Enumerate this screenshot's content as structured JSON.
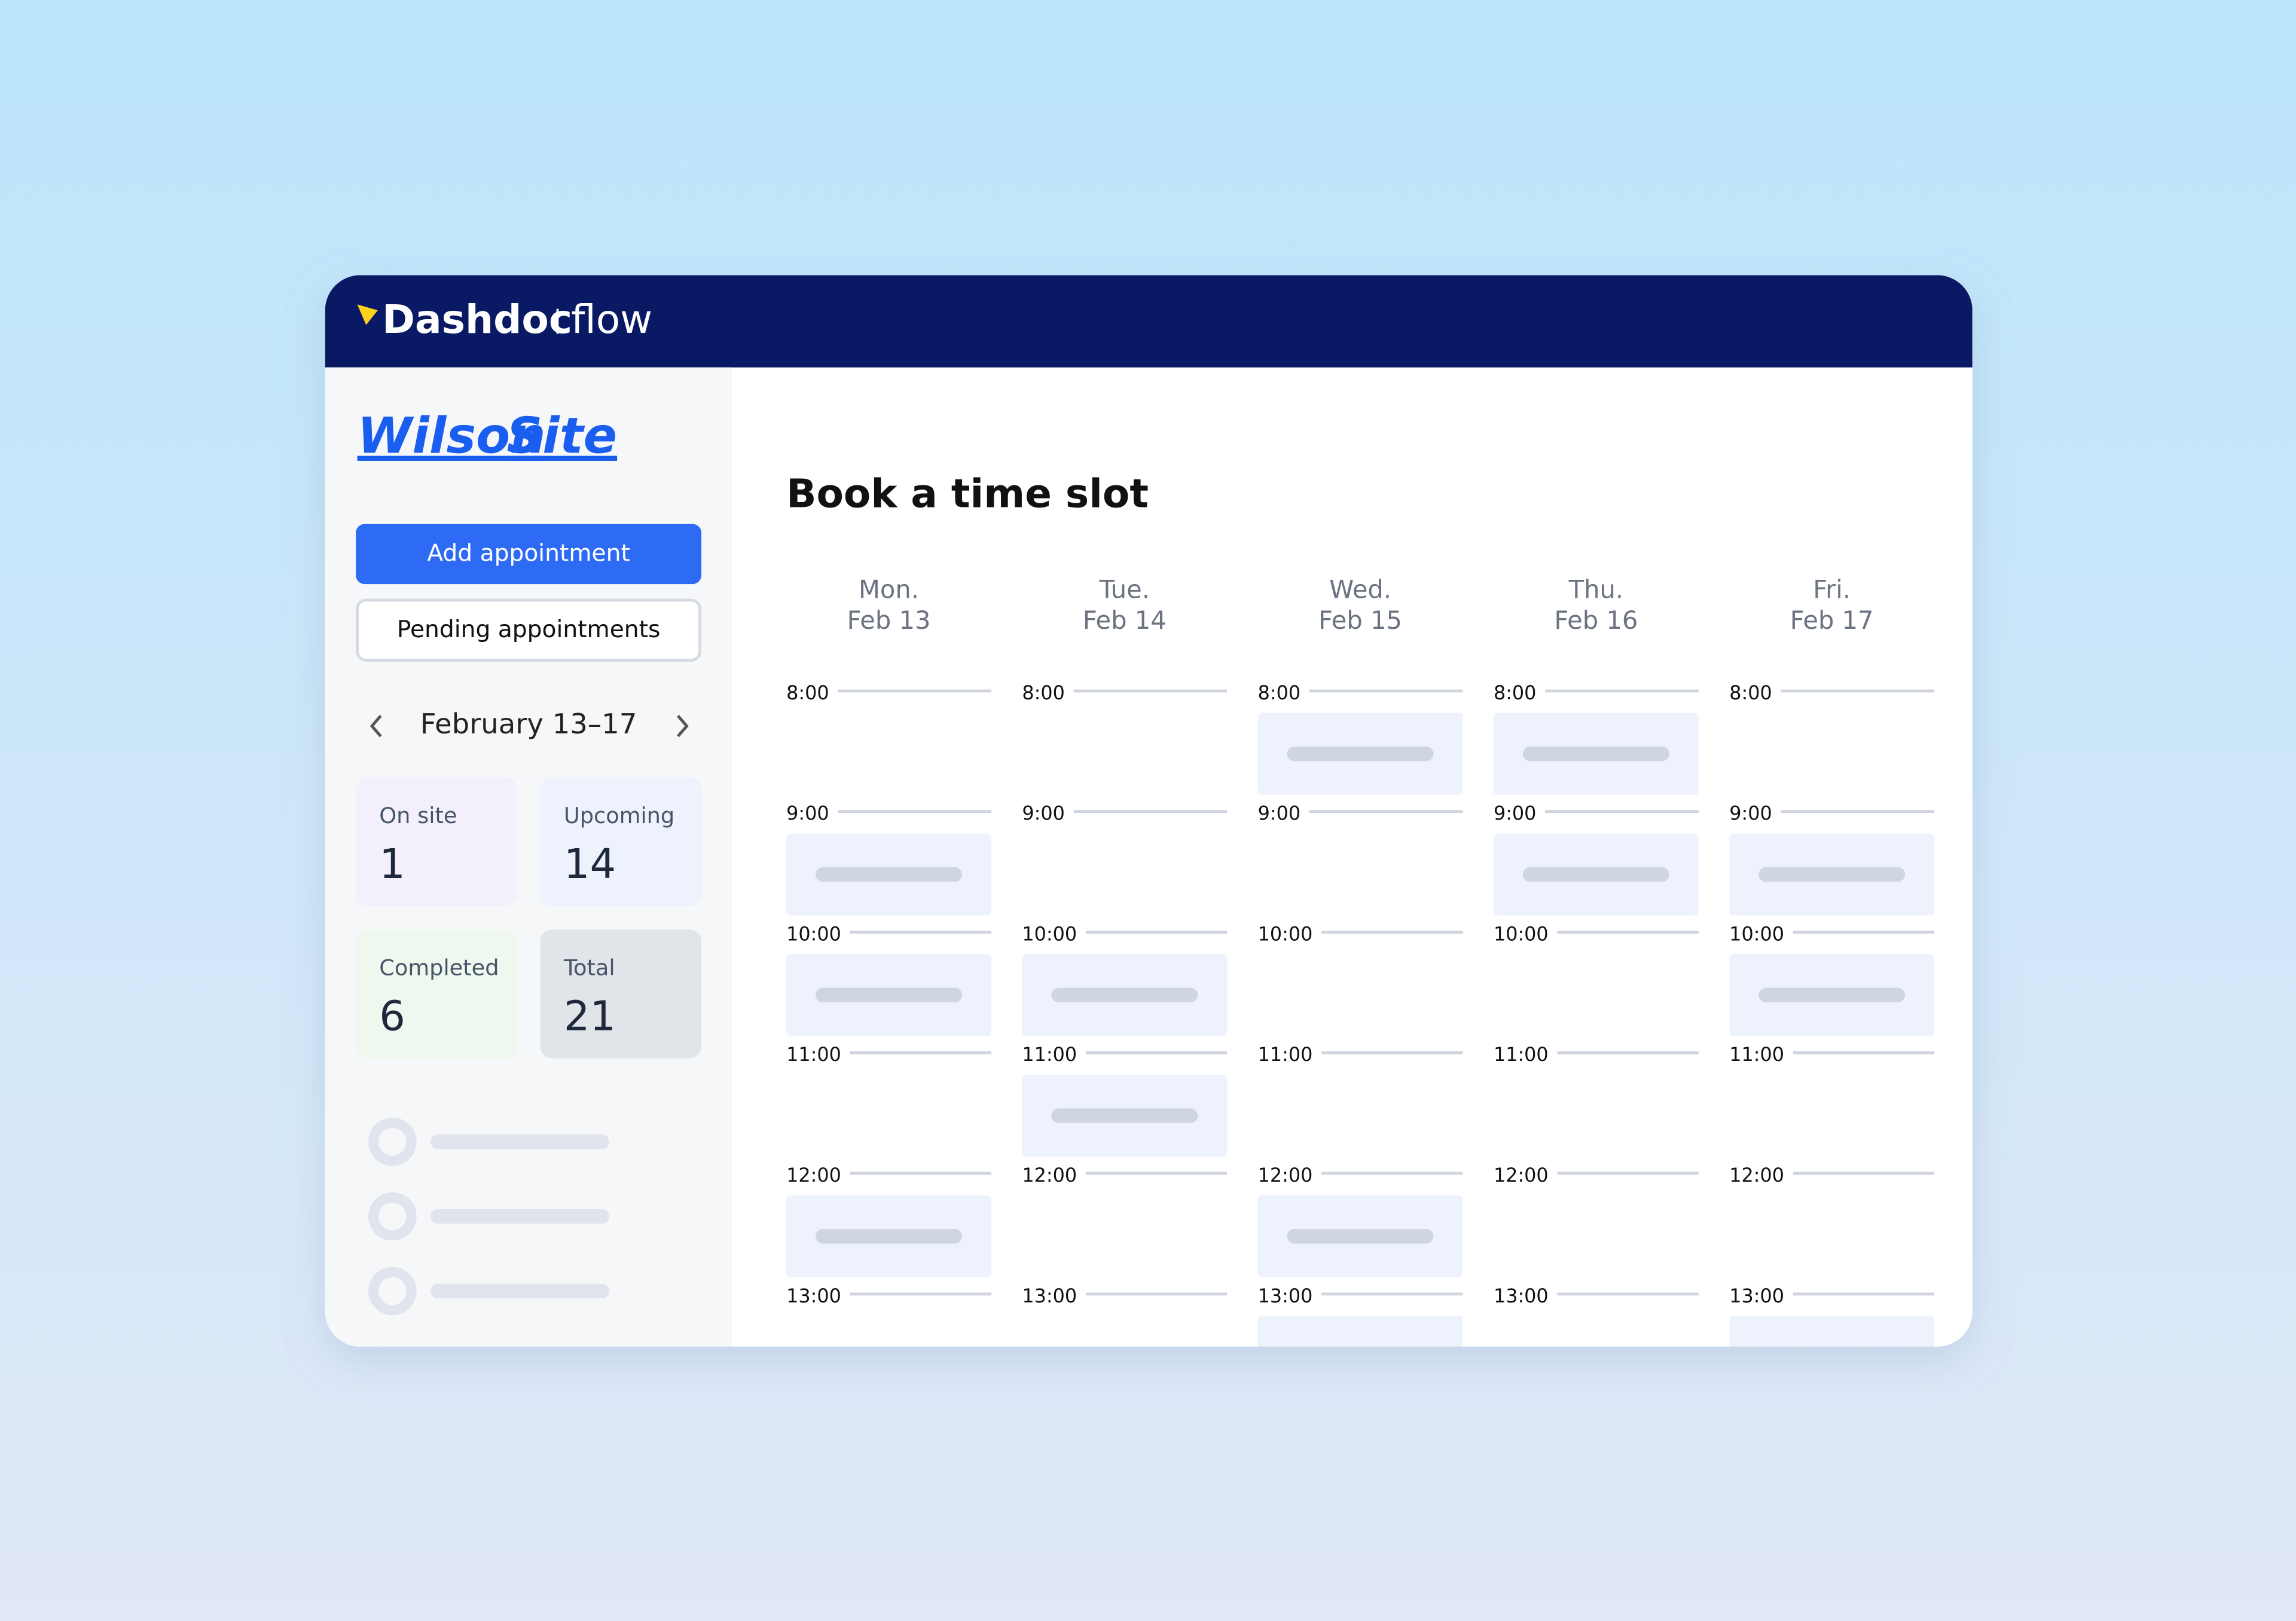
{
  "header": {
    "brand": "Dashdoc",
    "product": "flow"
  },
  "sidebar": {
    "site_name": [
      "Wilson",
      "Site"
    ],
    "buttons": [
      "Add appointment",
      "Pending appointments"
    ],
    "week": "February 13–17",
    "stats": [
      {
        "label": "On site",
        "value": 1
      },
      {
        "label": "Upcoming",
        "value": 14
      },
      {
        "label": "Completed",
        "value": 6
      },
      {
        "label": "Total",
        "value": 21
      }
    ]
  },
  "main": {
    "title": "Book a time slot",
    "days": [
      {
        "day": "Mon.",
        "date": "Feb 13"
      },
      {
        "day": "Tue.",
        "date": "Feb 14"
      },
      {
        "day": "Wed.",
        "date": "Feb 15"
      },
      {
        "day": "Thu.",
        "date": "Feb 16"
      },
      {
        "day": "Fri.",
        "date": "Feb 17"
      }
    ],
    "hours": [
      "8:00",
      "9:00",
      "10:00",
      "11:00",
      "12:00",
      "13:00"
    ]
  }
}
